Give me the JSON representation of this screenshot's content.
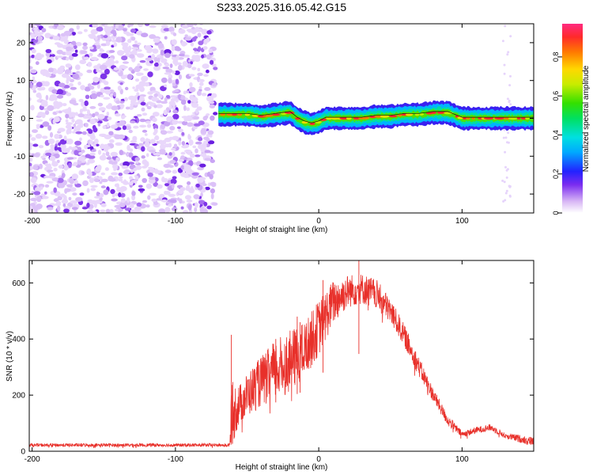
{
  "title": "S233.2025.316.05.42.G15",
  "chart_data": [
    {
      "type": "heatmap",
      "title": "S233.2025.316.05.42.G15",
      "xlabel": "Height of straight line (km)",
      "ylabel": "Frequency (Hz)",
      "xlim": [
        -202,
        150
      ],
      "ylim": [
        -25,
        25
      ],
      "xticks": [
        -200,
        -100,
        0,
        100
      ],
      "yticks": [
        20,
        10,
        0,
        -10,
        -20
      ],
      "colorbar": {
        "label": "Normalized spectral amplitude",
        "range": [
          0,
          0.97
        ],
        "ticks": [
          0,
          0.2,
          0.4,
          0.6,
          0.8
        ]
      },
      "signal_ridge": {
        "x_start": -70,
        "x_end": 150,
        "x": [
          -70,
          -60,
          -50,
          -40,
          -30,
          -20,
          -15,
          -10,
          -5,
          0,
          5,
          10,
          20,
          30,
          40,
          50,
          60,
          70,
          80,
          90,
          100,
          110,
          120,
          130,
          140,
          150
        ],
        "freq": [
          1,
          1,
          1,
          0.5,
          1,
          1.5,
          0,
          -1,
          -1.5,
          -1,
          0,
          0,
          0,
          0,
          0.5,
          0.5,
          1,
          1,
          1.5,
          1.5,
          0,
          0,
          0,
          0,
          0,
          0
        ]
      },
      "noise_region": {
        "x_range": [
          -202,
          -72
        ],
        "freq_range": [
          -25,
          25
        ]
      }
    },
    {
      "type": "line",
      "xlabel": "Height of straight line (km)",
      "ylabel": "SNR (10 * v/v)",
      "xlim": [
        -202,
        150
      ],
      "ylim": [
        0,
        680
      ],
      "xticks": [
        -200,
        -100,
        0,
        100
      ],
      "yticks": [
        0,
        200,
        400,
        600
      ],
      "series": [
        {
          "name": "SNR",
          "color": "#e8302a",
          "envelope_x": [
            -202,
            -100,
            -62,
            -61,
            -55,
            -50,
            -40,
            -30,
            -20,
            -10,
            0,
            10,
            20,
            30,
            40,
            50,
            60,
            70,
            80,
            90,
            100,
            110,
            120,
            130,
            140,
            150
          ],
          "envelope_y": [
            22,
            22,
            22,
            130,
            170,
            200,
            250,
            290,
            320,
            360,
            440,
            530,
            570,
            580,
            560,
            500,
            410,
            300,
            200,
            110,
            60,
            75,
            85,
            55,
            45,
            35
          ],
          "envelope_spread": [
            6,
            6,
            6,
            120,
            70,
            80,
            90,
            110,
            110,
            100,
            100,
            80,
            60,
            55,
            55,
            45,
            40,
            35,
            25,
            20,
            12,
            12,
            12,
            10,
            14,
            16
          ],
          "spikes": [
            {
              "x": -61,
              "y": 415
            },
            {
              "x": -30,
              "y": 400
            },
            {
              "x": -15,
              "y": 480
            },
            {
              "x": -13,
              "y": 460
            },
            {
              "x": 3,
              "y": 610
            },
            {
              "x": 28,
              "y": 680
            }
          ]
        }
      ]
    }
  ]
}
